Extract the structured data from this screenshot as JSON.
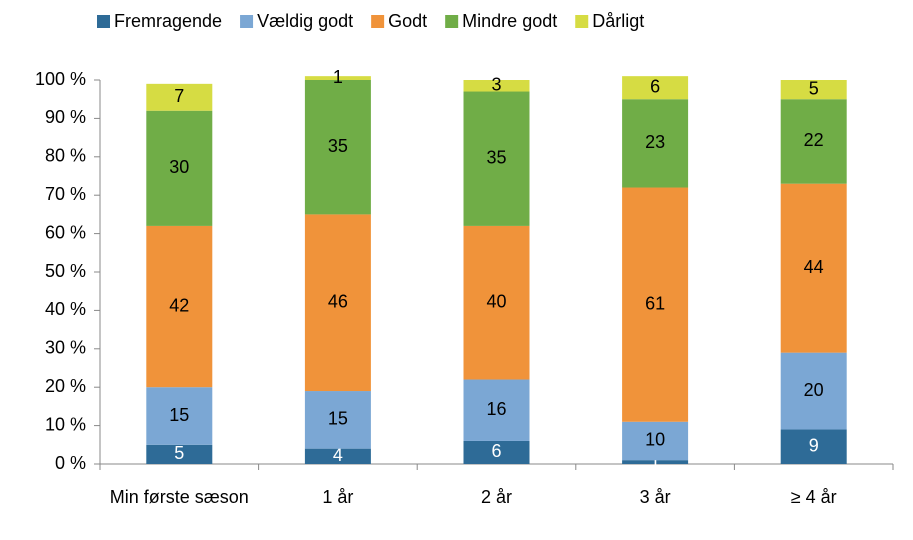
{
  "chart_data": {
    "type": "stacked_bar",
    "categories": [
      "Min første sæson",
      "1 år",
      "2 år",
      "3 år",
      "≥ 4 år"
    ],
    "series": [
      {
        "name": "Fremragende",
        "color": "#2e6b97",
        "label_color": "#ffffff",
        "values": [
          5,
          4,
          6,
          1,
          9
        ]
      },
      {
        "name": "Vældig godt",
        "color": "#7ba7d4",
        "label_color": "#000000",
        "values": [
          15,
          15,
          16,
          10,
          20
        ]
      },
      {
        "name": "Godt",
        "color": "#f0933a",
        "label_color": "#000000",
        "values": [
          42,
          46,
          40,
          61,
          44
        ]
      },
      {
        "name": "Mindre godt",
        "color": "#70ad47",
        "label_color": "#000000",
        "values": [
          30,
          35,
          35,
          23,
          22
        ]
      },
      {
        "name": "Dårligt",
        "color": "#d6dc43",
        "label_color": "#000000",
        "values": [
          7,
          1,
          3,
          6,
          5
        ]
      }
    ],
    "ylim": [
      0,
      100
    ],
    "yticks": [
      {
        "value": 0,
        "label": "0 %"
      },
      {
        "value": 10,
        "label": "10 %"
      },
      {
        "value": 20,
        "label": "20 %"
      },
      {
        "value": 30,
        "label": "30 %"
      },
      {
        "value": 40,
        "label": "40 %"
      },
      {
        "value": 50,
        "label": "50 %"
      },
      {
        "value": 60,
        "label": "60 %"
      },
      {
        "value": 70,
        "label": "70 %"
      },
      {
        "value": 80,
        "label": "80 %"
      },
      {
        "value": 90,
        "label": "90 %"
      },
      {
        "value": 100,
        "label": "100 %"
      }
    ],
    "grid": false,
    "legend": "top"
  }
}
